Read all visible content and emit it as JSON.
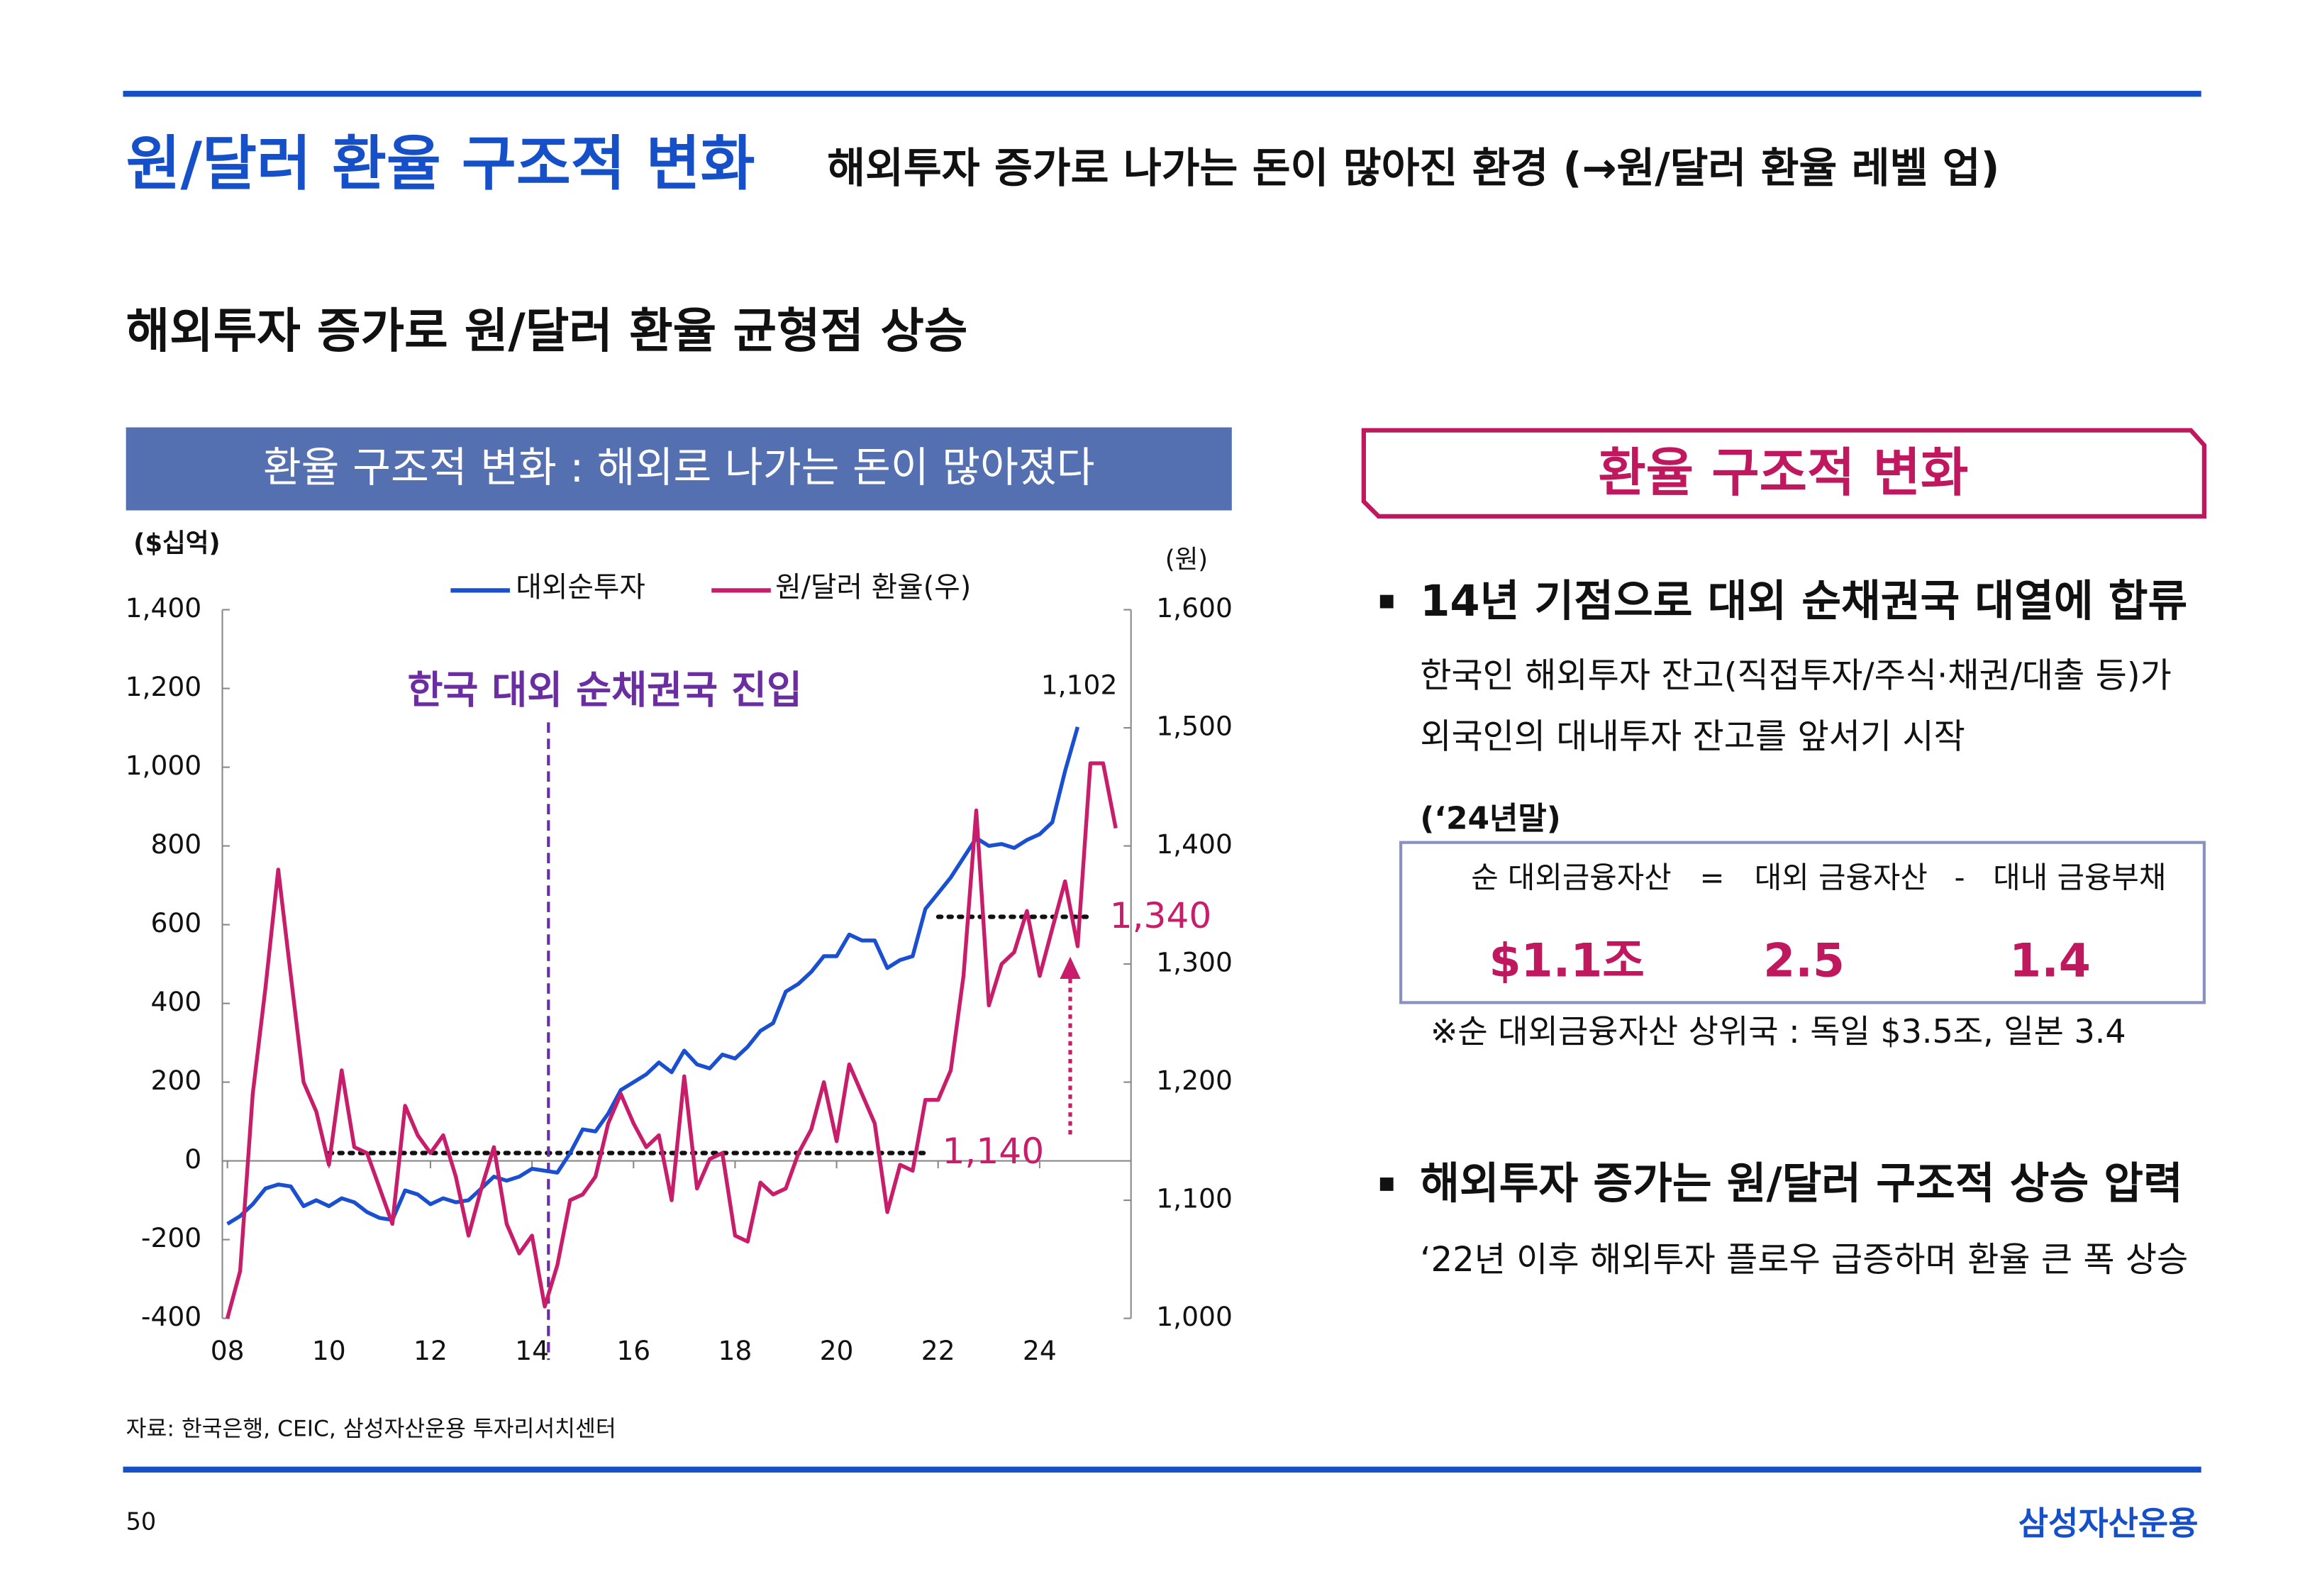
{
  "header": {
    "title": "원/달러 환율 구조적 변화",
    "subtitle": "해외투자 증가로 나가는 돈이 많아진 환경 (→원/달러 환율 레벨 업)"
  },
  "section_title": "해외투자 증가로 원/달러 환율 균형점 상승",
  "chart_data": {
    "type": "line",
    "title": "환율 구조적 변화 : 해외로 나가는 돈이 많아졌다",
    "y_label": "($십억)",
    "y2_label": "(원)",
    "x": [
      8,
      8.25,
      8.5,
      8.75,
      9,
      9.25,
      9.5,
      9.75,
      10,
      10.25,
      10.5,
      10.75,
      11,
      11.25,
      11.5,
      11.75,
      12,
      12.25,
      12.5,
      12.75,
      13,
      13.25,
      13.5,
      13.75,
      14,
      14.25,
      14.5,
      14.75,
      15,
      15.25,
      15.5,
      15.75,
      16,
      16.25,
      16.5,
      16.75,
      17,
      17.25,
      17.5,
      17.75,
      18,
      18.25,
      18.5,
      18.75,
      19,
      19.25,
      19.5,
      19.75,
      20,
      20.25,
      20.5,
      20.75,
      21,
      21.25,
      21.5,
      21.75,
      22,
      22.25,
      22.5,
      22.75,
      23,
      23.25,
      23.5,
      23.75,
      24,
      24.25,
      24.5,
      24.75,
      25,
      25.25,
      25.5
    ],
    "xlim": [
      7.9,
      25.8
    ],
    "xticks": [
      {
        "value": 8,
        "label": "08"
      },
      10,
      12,
      14,
      16,
      18,
      20,
      22,
      24
    ],
    "ylim": [
      -400,
      1400
    ],
    "yticks": [
      -400,
      -200,
      0,
      200,
      400,
      600,
      800,
      {
        "value": 1000,
        "label": "1,000"
      },
      {
        "value": 1200,
        "label": "1,200"
      },
      {
        "value": 1400,
        "label": "1,400"
      }
    ],
    "y2lim": [
      1000,
      1600
    ],
    "y2ticks": [
      {
        "value": 1000,
        "label": "1,000"
      },
      {
        "value": 1100,
        "label": "1,100"
      },
      {
        "value": 1200,
        "label": "1,200"
      },
      {
        "value": 1300,
        "label": "1,300"
      },
      {
        "value": 1400,
        "label": "1,400"
      },
      {
        "value": 1500,
        "label": "1,500"
      },
      {
        "value": 1600,
        "label": "1,600"
      }
    ],
    "series": [
      {
        "name": "대외순투자",
        "color": "#1a4fd0",
        "values": [
          -160,
          -140,
          -110,
          -70,
          -60,
          -65,
          -115,
          -100,
          -115,
          -95,
          -105,
          -130,
          -145,
          -150,
          -75,
          -85,
          -110,
          -95,
          -105,
          -100,
          -70,
          -40,
          -50,
          -40,
          -20,
          -25,
          -30,
          20,
          80,
          75,
          120,
          180,
          200,
          220,
          250,
          225,
          280,
          245,
          235,
          270,
          260,
          290,
          330,
          350,
          430,
          450,
          480,
          520,
          520,
          575,
          560,
          560,
          490,
          510,
          520,
          640,
          680,
          720,
          770,
          820,
          800,
          805,
          795,
          815,
          830,
          860,
          990,
          1102,
          null,
          null,
          null
        ]
      },
      {
        "name": "원/달러 환율(우)",
        "color": "#c81d6a",
        "axis": "y2",
        "values": [
          1000,
          1040,
          1190,
          1280,
          1380,
          1290,
          1200,
          1175,
          1130,
          1210,
          1145,
          1140,
          1110,
          1080,
          1180,
          1155,
          1140,
          1155,
          1120,
          1070,
          1110,
          1145,
          1080,
          1055,
          1070,
          1010,
          1045,
          1100,
          1105,
          1120,
          1165,
          1190,
          1165,
          1145,
          1155,
          1100,
          1205,
          1110,
          1135,
          1140,
          1070,
          1065,
          1115,
          1105,
          1110,
          1140,
          1160,
          1200,
          1150,
          1215,
          1190,
          1165,
          1090,
          1130,
          1125,
          1185,
          1185,
          1210,
          1290,
          1430,
          1265,
          1300,
          1310,
          1345,
          1290,
          1330,
          1370,
          1315,
          1470,
          1470,
          1415
        ]
      }
    ],
    "annotations": [
      {
        "value": 1102,
        "label": "1,102"
      },
      {
        "value": 1340,
        "label": "1,340"
      },
      {
        "value": 1140,
        "label": "1,140"
      }
    ],
    "note": "한국 대외 순채권국 진입"
  },
  "panel": {
    "title": "환율 구조적 변화",
    "bullet1": "14년 기점으로 대외 순채권국 대열에 합류",
    "bullet1_lines": [
      "한국인 해외투자 잔고(직접투자/주식·채권/대출 등)가",
      "외국인의 대내투자 잔고를 앞서기 시작"
    ],
    "table_title": "(‘24년말)",
    "table": {
      "labels": [
        "순 대외금융자산",
        "=",
        "대외 금융자산",
        "-",
        "대내 금융부채"
      ],
      "values": [
        "$1.1조",
        "2.5",
        "1.4"
      ]
    },
    "table_note": "※순 대외금융자산 상위국 : 독일 $3.5조, 일본 3.4",
    "bullet2": "해외투자 증가는 원/달러 구조적 상승 압력",
    "bullet2_lines": [
      "‘22년 이후 해외투자 플로우 급증하며 환율 큰 폭 상승"
    ]
  },
  "footer": {
    "source": "자료: 한국은행, CEIC, 삼성자산운용 투자리서치센터",
    "page": "50",
    "logo": "삼성자산운용"
  }
}
